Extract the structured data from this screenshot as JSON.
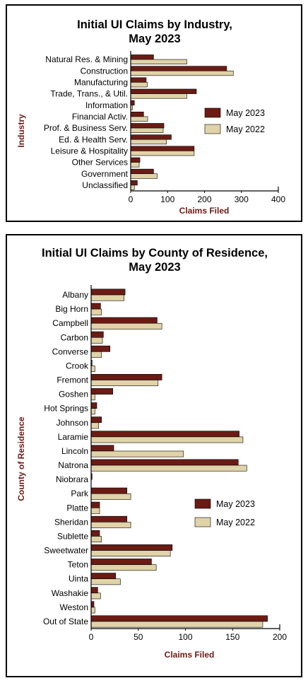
{
  "colors": {
    "may2023": "#6b1b14",
    "may2022": "#e0d3a8",
    "axis_label": "#6b1b14"
  },
  "chart_data": [
    {
      "type": "bar",
      "orientation": "horizontal",
      "title": [
        "Initial UI Claims by Industry,",
        "May 2023"
      ],
      "xlabel": "Claims Filed",
      "ylabel": "Industry",
      "xlim": [
        0,
        400
      ],
      "xticks": [
        "0",
        "100",
        "200",
        "300",
        "400"
      ],
      "legend_position": "right",
      "categories": [
        "Natural Res. & Mining",
        "Construction",
        "Manufacturing",
        "Trade, Trans., & Util.",
        "Information",
        "Financial Activ.",
        "Prof. & Business Serv.",
        "Ed. & Health Serv.",
        "Leisure & Hospitality",
        "Other Services",
        "Government",
        "Unclassified"
      ],
      "series": [
        {
          "name": "May 2023",
          "values": [
            62,
            260,
            42,
            178,
            10,
            35,
            90,
            110,
            172,
            25,
            62,
            18
          ]
        },
        {
          "name": "May 2022",
          "values": [
            152,
            278,
            45,
            152,
            5,
            46,
            88,
            97,
            172,
            23,
            72,
            10
          ]
        }
      ]
    },
    {
      "type": "bar",
      "orientation": "horizontal",
      "title": [
        "Initial UI Claims by County of Residence,",
        "May 2023"
      ],
      "xlabel": "Claims Filed",
      "ylabel": "County of Residence",
      "xlim": [
        0,
        200
      ],
      "xticks": [
        "0",
        "50",
        "100",
        "150",
        "200"
      ],
      "legend_position": "right",
      "categories": [
        "Albany",
        "Big Horn",
        "Campbell",
        "Carbon",
        "Converse",
        "Crook",
        "Fremont",
        "Goshen",
        "Hot Springs",
        "Johnson",
        "Laramie",
        "Lincoln",
        "Natrona",
        "Niobrara",
        "Park",
        "Platte",
        "Sheridan",
        "Sublette",
        "Sweetwater",
        "Teton",
        "Uinta",
        "Washakie",
        "Weston",
        "Out of State"
      ],
      "series": [
        {
          "name": "May 2023",
          "values": [
            36,
            10,
            70,
            13,
            20,
            1,
            75,
            23,
            6,
            11,
            157,
            24,
            156,
            1,
            38,
            9,
            38,
            9,
            86,
            64,
            26,
            7,
            3,
            187
          ]
        },
        {
          "name": "May 2022",
          "values": [
            35,
            11,
            75,
            12,
            11,
            4,
            71,
            4,
            4,
            8,
            161,
            98,
            165,
            0,
            42,
            9,
            42,
            11,
            84,
            69,
            31,
            10,
            4,
            182
          ]
        }
      ]
    }
  ]
}
